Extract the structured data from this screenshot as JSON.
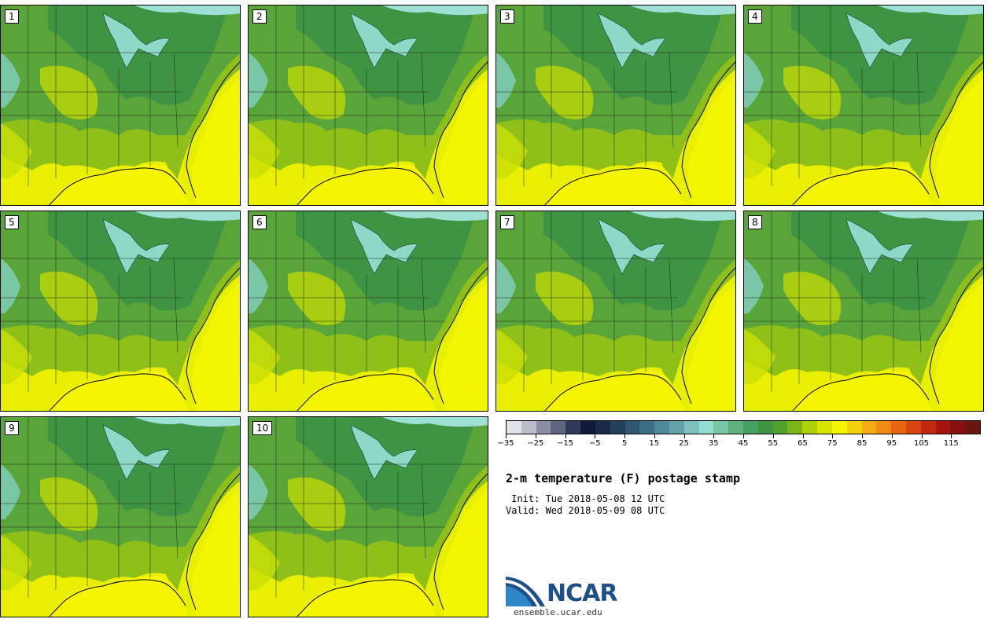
{
  "panels": [
    {
      "label": "1"
    },
    {
      "label": "2"
    },
    {
      "label": "3"
    },
    {
      "label": "4"
    },
    {
      "label": "5"
    },
    {
      "label": "6"
    },
    {
      "label": "7"
    },
    {
      "label": "8"
    },
    {
      "label": "9"
    },
    {
      "label": "10"
    }
  ],
  "colorbar": {
    "colors": [
      "#dfe3e8",
      "#b8bccb",
      "#8a8fa6",
      "#5e6580",
      "#303a58",
      "#0f1a36",
      "#1a2a48",
      "#25405d",
      "#2f5672",
      "#3e6f86",
      "#4f8999",
      "#63a3a8",
      "#7ec0bc",
      "#92dcd2",
      "#78c7a3",
      "#5bb27f",
      "#46a061",
      "#3d9445",
      "#4fa02d",
      "#7cb518",
      "#aed00b",
      "#d6e400",
      "#f5f500",
      "#f4d00c",
      "#f2ad13",
      "#f08a14",
      "#e86611",
      "#d8460f",
      "#c0290f",
      "#a3160f",
      "#861010",
      "#6b150f"
    ],
    "tick_labels": [
      "−35",
      "−25",
      "−15",
      "−5",
      "5",
      "15",
      "25",
      "35",
      "45",
      "55",
      "65",
      "75",
      "85",
      "95",
      "105",
      "115"
    ]
  },
  "title": "2-m temperature (F) postage stamp",
  "init": " Init: Tue 2018-05-08 12 UTC",
  "valid": "Valid: Wed 2018-05-09 08 UTC",
  "logo": {
    "text": "NCAR",
    "site": "ensemble.ucar.edu",
    "brand_color": "#1f4f8a"
  }
}
